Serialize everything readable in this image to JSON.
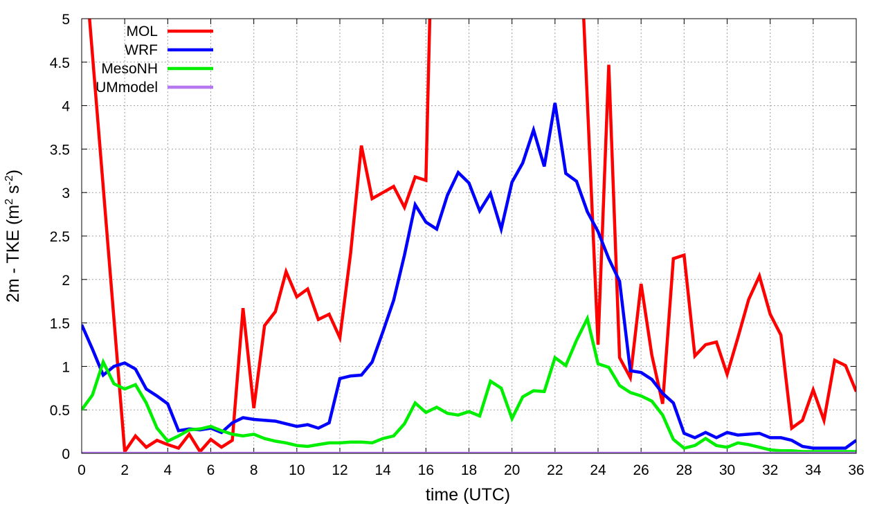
{
  "chart_data": {
    "type": "line",
    "xlabel": "time (UTC)",
    "ylabel_main": "2m - TKE (m",
    "ylabel_sup1": "2",
    "ylabel_mid": " s",
    "ylabel_sup2": "-2",
    "ylabel_end": ")",
    "xlim": [
      0,
      36
    ],
    "ylim": [
      0,
      5
    ],
    "xticks": [
      0,
      2,
      4,
      6,
      8,
      10,
      12,
      14,
      16,
      18,
      20,
      22,
      24,
      26,
      28,
      30,
      32,
      34,
      36
    ],
    "xtick_labels": [
      "0",
      "2",
      "4",
      "6",
      "8",
      "10",
      "12",
      "14",
      "16",
      "18",
      "20",
      "22",
      "24",
      "26",
      "28",
      "30",
      "32",
      "34",
      "36"
    ],
    "yticks": [
      0,
      0.5,
      1,
      1.5,
      2,
      2.5,
      3,
      3.5,
      4,
      4.5,
      5
    ],
    "ytick_labels": [
      "0",
      "0.5",
      "1",
      "1.5",
      "2",
      "2.5",
      "3",
      "3.5",
      "4",
      "4.5",
      "5"
    ],
    "grid": true,
    "legend_position": "top-left",
    "series": [
      {
        "name": "MOL",
        "color": "#ff0000",
        "points": [
          [
            0.3,
            5.2
          ],
          [
            2,
            0.02
          ],
          [
            2.5,
            0.2
          ],
          [
            3,
            0.07
          ],
          [
            3.5,
            0.15
          ],
          [
            4,
            0.1
          ],
          [
            4.5,
            0.06
          ],
          [
            5,
            0.22
          ],
          [
            5.5,
            0.02
          ],
          [
            6,
            0.16
          ],
          [
            6.5,
            0.07
          ],
          [
            7,
            0.15
          ],
          [
            7.5,
            1.67
          ],
          [
            8,
            0.52
          ],
          [
            8.5,
            1.47
          ],
          [
            9,
            1.63
          ],
          [
            9.5,
            2.09
          ],
          [
            10,
            1.8
          ],
          [
            10.5,
            1.89
          ],
          [
            11,
            1.54
          ],
          [
            11.5,
            1.6
          ],
          [
            12,
            1.33
          ],
          [
            12.5,
            2.3
          ],
          [
            13,
            3.54
          ],
          [
            13.5,
            2.93
          ],
          [
            14,
            3.0
          ],
          [
            14.5,
            3.07
          ],
          [
            15,
            2.83
          ],
          [
            15.5,
            3.18
          ],
          [
            16,
            3.14
          ],
          [
            16.2,
            5.2
          ],
          [
            23.3,
            5.2
          ],
          [
            24,
            1.25
          ],
          [
            24.5,
            4.47
          ],
          [
            25,
            1.1
          ],
          [
            25.5,
            0.87
          ],
          [
            26,
            1.95
          ],
          [
            26.5,
            1.13
          ],
          [
            27,
            0.57
          ],
          [
            27.5,
            2.24
          ],
          [
            28,
            2.28
          ],
          [
            28.5,
            1.12
          ],
          [
            29,
            1.25
          ],
          [
            29.5,
            1.28
          ],
          [
            30,
            0.91
          ],
          [
            30.5,
            1.33
          ],
          [
            31,
            1.77
          ],
          [
            31.5,
            2.04
          ],
          [
            32,
            1.6
          ],
          [
            32.5,
            1.36
          ],
          [
            33,
            0.29
          ],
          [
            33.5,
            0.38
          ],
          [
            34,
            0.73
          ],
          [
            34.5,
            0.38
          ],
          [
            35,
            1.07
          ],
          [
            35.5,
            1.01
          ],
          [
            36,
            0.71
          ]
        ]
      },
      {
        "name": "WRF",
        "color": "#0000ff",
        "points": [
          [
            0,
            1.48
          ],
          [
            0.5,
            1.2
          ],
          [
            1,
            0.9
          ],
          [
            1.5,
            1.0
          ],
          [
            2,
            1.04
          ],
          [
            2.5,
            0.97
          ],
          [
            3,
            0.74
          ],
          [
            3.5,
            0.66
          ],
          [
            4,
            0.57
          ],
          [
            4.5,
            0.26
          ],
          [
            5,
            0.28
          ],
          [
            5.5,
            0.27
          ],
          [
            6,
            0.29
          ],
          [
            6.5,
            0.24
          ],
          [
            7,
            0.35
          ],
          [
            7.5,
            0.41
          ],
          [
            8,
            0.39
          ],
          [
            8.5,
            0.38
          ],
          [
            9,
            0.37
          ],
          [
            9.5,
            0.34
          ],
          [
            10,
            0.31
          ],
          [
            10.5,
            0.33
          ],
          [
            11,
            0.29
          ],
          [
            11.5,
            0.35
          ],
          [
            12,
            0.86
          ],
          [
            12.5,
            0.89
          ],
          [
            13,
            0.9
          ],
          [
            13.5,
            1.05
          ],
          [
            14,
            1.4
          ],
          [
            14.5,
            1.76
          ],
          [
            15,
            2.28
          ],
          [
            15.5,
            2.86
          ],
          [
            16,
            2.66
          ],
          [
            16.5,
            2.58
          ],
          [
            17,
            2.97
          ],
          [
            17.5,
            3.23
          ],
          [
            18,
            3.11
          ],
          [
            18.5,
            2.79
          ],
          [
            19,
            2.99
          ],
          [
            19.5,
            2.58
          ],
          [
            20,
            3.12
          ],
          [
            20.5,
            3.34
          ],
          [
            21,
            3.72
          ],
          [
            21.5,
            3.3
          ],
          [
            22,
            4.03
          ],
          [
            22.5,
            3.22
          ],
          [
            23,
            3.13
          ],
          [
            23.5,
            2.78
          ],
          [
            24,
            2.55
          ],
          [
            24.5,
            2.24
          ],
          [
            25,
            1.98
          ],
          [
            25.5,
            0.95
          ],
          [
            26,
            0.93
          ],
          [
            26.5,
            0.85
          ],
          [
            27,
            0.69
          ],
          [
            27.5,
            0.58
          ],
          [
            28,
            0.23
          ],
          [
            28.5,
            0.18
          ],
          [
            29,
            0.24
          ],
          [
            29.5,
            0.18
          ],
          [
            30,
            0.24
          ],
          [
            30.5,
            0.21
          ],
          [
            31,
            0.22
          ],
          [
            31.5,
            0.23
          ],
          [
            32,
            0.18
          ],
          [
            32.5,
            0.18
          ],
          [
            33,
            0.15
          ],
          [
            33.5,
            0.08
          ],
          [
            34,
            0.06
          ],
          [
            34.5,
            0.06
          ],
          [
            35,
            0.06
          ],
          [
            35.5,
            0.06
          ],
          [
            36,
            0.15
          ]
        ]
      },
      {
        "name": "MesoNH",
        "color": "#00ee00",
        "points": [
          [
            0,
            0.5
          ],
          [
            0.5,
            0.67
          ],
          [
            1,
            1.05
          ],
          [
            1.5,
            0.8
          ],
          [
            2,
            0.74
          ],
          [
            2.5,
            0.79
          ],
          [
            3,
            0.58
          ],
          [
            3.5,
            0.29
          ],
          [
            4,
            0.14
          ],
          [
            4.5,
            0.2
          ],
          [
            5,
            0.27
          ],
          [
            5.5,
            0.28
          ],
          [
            6,
            0.31
          ],
          [
            6.5,
            0.26
          ],
          [
            7,
            0.22
          ],
          [
            7.5,
            0.2
          ],
          [
            8,
            0.22
          ],
          [
            8.5,
            0.17
          ],
          [
            9,
            0.14
          ],
          [
            9.5,
            0.12
          ],
          [
            10,
            0.09
          ],
          [
            10.5,
            0.08
          ],
          [
            11,
            0.1
          ],
          [
            11.5,
            0.12
          ],
          [
            12,
            0.12
          ],
          [
            12.5,
            0.13
          ],
          [
            13,
            0.13
          ],
          [
            13.5,
            0.12
          ],
          [
            14,
            0.17
          ],
          [
            14.5,
            0.2
          ],
          [
            15,
            0.34
          ],
          [
            15.5,
            0.58
          ],
          [
            16,
            0.47
          ],
          [
            16.5,
            0.53
          ],
          [
            17,
            0.46
          ],
          [
            17.5,
            0.44
          ],
          [
            18,
            0.48
          ],
          [
            18.5,
            0.43
          ],
          [
            19,
            0.83
          ],
          [
            19.5,
            0.75
          ],
          [
            20,
            0.4
          ],
          [
            20.5,
            0.65
          ],
          [
            21,
            0.72
          ],
          [
            21.5,
            0.71
          ],
          [
            22,
            1.1
          ],
          [
            22.5,
            1.01
          ],
          [
            23,
            1.3
          ],
          [
            23.5,
            1.55
          ],
          [
            24,
            1.03
          ],
          [
            24.5,
            0.99
          ],
          [
            25,
            0.78
          ],
          [
            25.5,
            0.7
          ],
          [
            26,
            0.66
          ],
          [
            26.5,
            0.6
          ],
          [
            27,
            0.44
          ],
          [
            27.5,
            0.16
          ],
          [
            28,
            0.06
          ],
          [
            28.5,
            0.09
          ],
          [
            29,
            0.17
          ],
          [
            29.5,
            0.09
          ],
          [
            30,
            0.07
          ],
          [
            30.5,
            0.12
          ],
          [
            31,
            0.1
          ],
          [
            31.5,
            0.07
          ],
          [
            32,
            0.04
          ],
          [
            32.5,
            0.03
          ],
          [
            33,
            0.03
          ],
          [
            33.5,
            0.02
          ],
          [
            34,
            0.02
          ],
          [
            34.5,
            0.02
          ],
          [
            35,
            0.02
          ],
          [
            35.5,
            0.02
          ],
          [
            36,
            0.02
          ]
        ]
      },
      {
        "name": "UMmodel",
        "color": "#b678f0",
        "points": [
          [
            0,
            0
          ],
          [
            36,
            0
          ]
        ]
      }
    ]
  }
}
